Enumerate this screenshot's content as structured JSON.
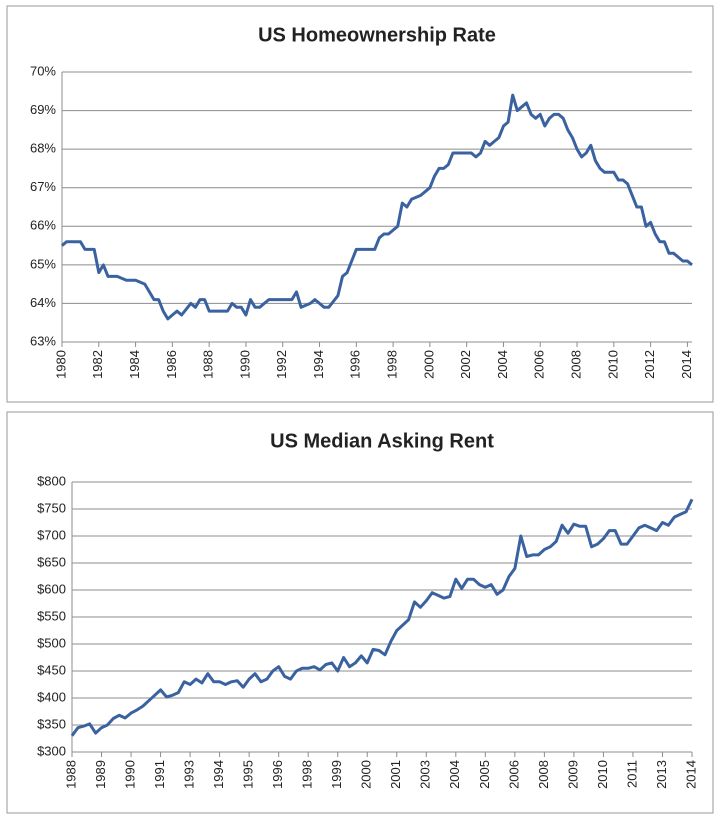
{
  "chart_data": [
    {
      "type": "line",
      "title": "US Homeownership Rate",
      "color": "#3a62a0",
      "grid": true,
      "x": [
        1980,
        1980.25,
        1981,
        1981.25,
        1981.75,
        1982,
        1982.25,
        1982.5,
        1983,
        1983.5,
        1984,
        1984.5,
        1985,
        1985.25,
        1985.5,
        1985.75,
        1986,
        1986.25,
        1986.5,
        1987,
        1987.25,
        1987.5,
        1987.75,
        1988,
        1988.5,
        1989,
        1989.25,
        1989.5,
        1989.75,
        1990,
        1990.25,
        1990.5,
        1990.75,
        1991,
        1991.25,
        1992,
        1992.5,
        1992.75,
        1993,
        1993.5,
        1993.75,
        1994,
        1994.25,
        1994.5,
        1995,
        1995.25,
        1995.5,
        1995.75,
        1996,
        1996.5,
        1997,
        1997.25,
        1997.5,
        1997.75,
        1998,
        1998.25,
        1998.5,
        1998.75,
        1999,
        1999.5,
        2000,
        2000.25,
        2000.5,
        2000.75,
        2001,
        2001.25,
        2001.75,
        2002.25,
        2002.5,
        2002.75,
        2003,
        2003.25,
        2003.5,
        2003.75,
        2004,
        2004.25,
        2004.5,
        2004.75,
        2005,
        2005.25,
        2005.5,
        2005.75,
        2006,
        2006.25,
        2006.5,
        2006.75,
        2007,
        2007.25,
        2007.5,
        2007.75,
        2008,
        2008.25,
        2008.5,
        2008.75,
        2009,
        2009.25,
        2009.5,
        2010,
        2010.25,
        2010.5,
        2010.75,
        2011,
        2011.25,
        2011.5,
        2011.75,
        2012,
        2012.25,
        2012.5,
        2012.75,
        2013,
        2013.25,
        2013.5,
        2013.75,
        2014,
        2014.25
      ],
      "values": [
        65.5,
        65.6,
        65.6,
        65.4,
        65.4,
        64.8,
        65.0,
        64.7,
        64.7,
        64.6,
        64.6,
        64.5,
        64.1,
        64.1,
        63.8,
        63.6,
        63.7,
        63.8,
        63.7,
        64.0,
        63.9,
        64.1,
        64.1,
        63.8,
        63.8,
        63.8,
        64.0,
        63.9,
        63.9,
        63.7,
        64.1,
        63.9,
        63.9,
        64.0,
        64.1,
        64.1,
        64.1,
        64.3,
        63.9,
        64.0,
        64.1,
        64.0,
        63.9,
        63.9,
        64.2,
        64.7,
        64.8,
        65.1,
        65.4,
        65.4,
        65.4,
        65.7,
        65.8,
        65.8,
        65.9,
        66.0,
        66.6,
        66.5,
        66.7,
        66.8,
        67.0,
        67.3,
        67.5,
        67.5,
        67.6,
        67.9,
        67.9,
        67.9,
        67.8,
        67.9,
        68.2,
        68.1,
        68.2,
        68.3,
        68.6,
        68.7,
        69.4,
        69.0,
        69.1,
        69.2,
        68.9,
        68.8,
        68.9,
        68.6,
        68.8,
        68.9,
        68.9,
        68.8,
        68.5,
        68.3,
        68.0,
        67.8,
        67.9,
        68.1,
        67.7,
        67.5,
        67.4,
        67.4,
        67.2,
        67.2,
        67.1,
        66.8,
        66.5,
        66.5,
        66.0,
        66.1,
        65.8,
        65.6,
        65.6,
        65.3,
        65.3,
        65.2,
        65.1,
        65.1,
        65.0
      ],
      "xlim": [
        1980,
        2014.25
      ],
      "xticks": [
        1980,
        1982,
        1984,
        1986,
        1988,
        1990,
        1992,
        1994,
        1996,
        1998,
        2000,
        2002,
        2004,
        2006,
        2008,
        2010,
        2012,
        2014
      ],
      "ylim": [
        63,
        70
      ],
      "yticks": [
        {
          "value": 63,
          "label": "63%"
        },
        {
          "value": 64,
          "label": "64%"
        },
        {
          "value": 65,
          "label": "65%"
        },
        {
          "value": 66,
          "label": "66%"
        },
        {
          "value": 67,
          "label": "67%"
        },
        {
          "value": 68,
          "label": "68%"
        },
        {
          "value": 69,
          "label": "69%"
        },
        {
          "value": 70,
          "label": "70%"
        }
      ]
    },
    {
      "type": "line",
      "title": "US Median Asking Rent",
      "color": "#3a62a0",
      "grid": true,
      "x": [
        1988,
        1988.25,
        1988.5,
        1988.75,
        1989,
        1989.25,
        1989.5,
        1989.75,
        1990,
        1990.25,
        1990.5,
        1990.75,
        1991,
        1991.25,
        1991.5,
        1991.75,
        1992,
        1992.25,
        1992.5,
        1992.75,
        1993,
        1993.25,
        1993.5,
        1993.75,
        1994,
        1994.25,
        1994.5,
        1994.75,
        1995,
        1995.25,
        1995.5,
        1995.75,
        1996,
        1996.25,
        1996.5,
        1996.75,
        1997,
        1997.25,
        1997.5,
        1997.75,
        1998,
        1998.25,
        1998.5,
        1998.75,
        1999,
        1999.25,
        1999.5,
        1999.75,
        2000,
        2000.25,
        2000.5,
        2000.75,
        2001,
        2001.25,
        2001.5,
        2001.75,
        2002,
        2002.25,
        2002.5,
        2002.75,
        2003,
        2003.25,
        2003.5,
        2003.75,
        2004,
        2004.25,
        2004.5,
        2004.75,
        2005,
        2005.25,
        2005.5,
        2005.75,
        2006,
        2006.25,
        2006.5,
        2006.75,
        2007,
        2007.25,
        2007.5,
        2007.75,
        2008,
        2008.25,
        2008.5,
        2008.75,
        2009,
        2009.25,
        2009.5,
        2009.75,
        2010,
        2010.25,
        2010.5,
        2010.75,
        2011,
        2011.25,
        2011.5,
        2011.75,
        2012,
        2012.25,
        2012.5,
        2012.75,
        2013,
        2013.25,
        2013.5,
        2013.75,
        2014,
        2014.25
      ],
      "values": [
        330,
        345,
        348,
        352,
        335,
        345,
        350,
        362,
        368,
        363,
        372,
        378,
        385,
        395,
        405,
        415,
        402,
        405,
        410,
        430,
        425,
        435,
        428,
        445,
        430,
        430,
        425,
        430,
        432,
        420,
        435,
        445,
        430,
        435,
        450,
        458,
        440,
        435,
        450,
        455,
        455,
        458,
        452,
        462,
        465,
        450,
        475,
        458,
        465,
        478,
        465,
        490,
        488,
        480,
        505,
        525,
        535,
        545,
        578,
        568,
        580,
        595,
        590,
        585,
        588,
        620,
        603,
        620,
        620,
        610,
        605,
        610,
        592,
        600,
        625,
        640,
        700,
        662,
        665,
        665,
        675,
        680,
        690,
        720,
        705,
        722,
        718,
        718,
        680,
        685,
        695,
        710,
        710,
        685,
        685,
        700,
        715,
        720,
        715,
        710,
        725,
        720,
        735,
        740,
        745,
        768
      ],
      "xlim": [
        1988,
        2014.25
      ],
      "xticks": [
        1988,
        {
          "value": 1989.25,
          "label": "1989"
        },
        {
          "value": 1990.5,
          "label": "1990"
        },
        {
          "value": 1991.75,
          "label": "1991"
        },
        1993,
        {
          "value": 1994.25,
          "label": "1994"
        },
        {
          "value": 1995.5,
          "label": "1995"
        },
        {
          "value": 1996.75,
          "label": "1996"
        },
        1998,
        {
          "value": 1999.25,
          "label": "1999"
        },
        {
          "value": 2000.5,
          "label": "2000"
        },
        {
          "value": 2001.75,
          "label": "2001"
        },
        2003,
        {
          "value": 2004.25,
          "label": "2004"
        },
        {
          "value": 2005.5,
          "label": "2005"
        },
        {
          "value": 2006.75,
          "label": "2006"
        },
        2008,
        {
          "value": 2009.25,
          "label": "2009"
        },
        {
          "value": 2010.5,
          "label": "2010"
        },
        {
          "value": 2011.75,
          "label": "2011"
        },
        2013,
        {
          "value": 2014.25,
          "label": "2014"
        }
      ],
      "ylim": [
        300,
        800
      ],
      "yticks": [
        {
          "value": 300,
          "label": "$300"
        },
        {
          "value": 350,
          "label": "$350"
        },
        {
          "value": 400,
          "label": "$400"
        },
        {
          "value": 450,
          "label": "$450"
        },
        {
          "value": 500,
          "label": "$500"
        },
        {
          "value": 550,
          "label": "$550"
        },
        {
          "value": 600,
          "label": "$600"
        },
        {
          "value": 650,
          "label": "$650"
        },
        {
          "value": 700,
          "label": "$700"
        },
        {
          "value": 750,
          "label": "$750"
        },
        {
          "value": 800,
          "label": "$800"
        }
      ]
    }
  ]
}
